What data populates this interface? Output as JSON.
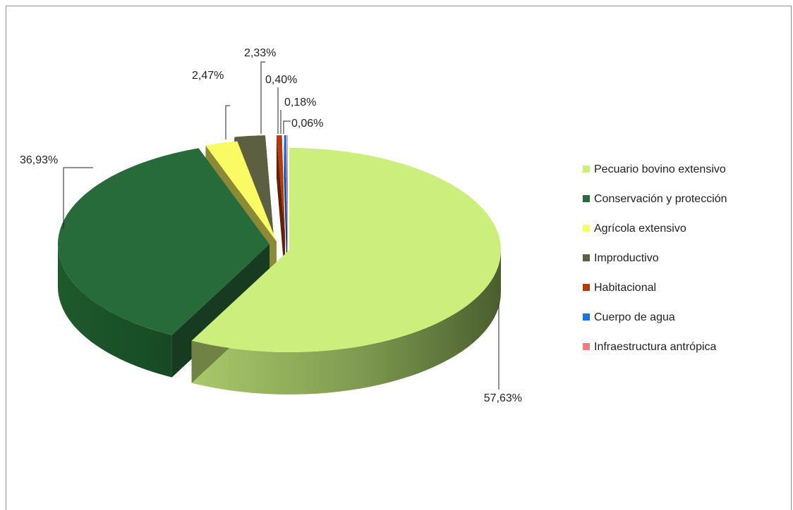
{
  "chart_data": {
    "type": "pie",
    "title": "",
    "legend_position": "right",
    "slices": [
      {
        "label": "Pecuario bovino extensivo",
        "value": 57.63,
        "value_label": "57,63%",
        "color": "#CCEE7D"
      },
      {
        "label": "Conservación y protección",
        "value": 36.93,
        "value_label": "36,93%",
        "color": "#286B3A"
      },
      {
        "label": "Agrícola extensivo",
        "value": 2.47,
        "value_label": "2,47%",
        "color": "#FAFA64"
      },
      {
        "label": "Improductivo",
        "value": 2.33,
        "value_label": "2,33%",
        "color": "#5C6040"
      },
      {
        "label": "Habitacional",
        "value": 0.4,
        "value_label": "0,40%",
        "color": "#B33A0C"
      },
      {
        "label": "Cuerpo de agua",
        "value": 0.18,
        "value_label": "0,18%",
        "color": "#1E6FE0"
      },
      {
        "label": "Infraestructura antrópica",
        "value": 0.06,
        "value_label": "0,06%",
        "color": "#F07C7C"
      }
    ]
  }
}
